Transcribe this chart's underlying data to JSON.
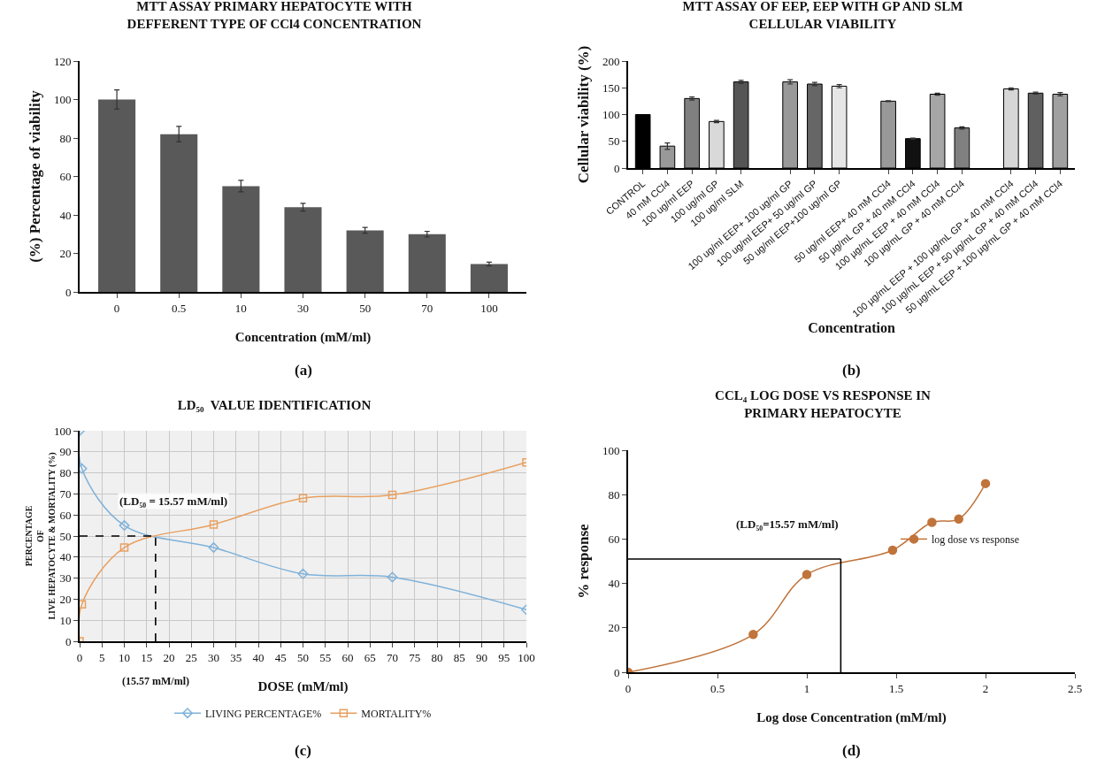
{
  "chart_data": [
    {
      "type": "bar",
      "title": "MTT ASSAY PRIMARY HEPATOCYTE WITH\nDEFFERENT TYPE OF CCl4 CONCENTRATION",
      "xlabel": "Concentration (mM/ml)",
      "ylabel": "(%) Percentage of viability",
      "categories": [
        "0",
        "0.5",
        "10",
        "30",
        "50",
        "70",
        "100"
      ],
      "values": [
        100,
        82,
        55,
        44,
        32,
        30,
        14.5
      ],
      "errors": [
        5,
        4,
        3,
        2,
        1.5,
        1.5,
        1
      ],
      "color": "#595959",
      "ylim": [
        0,
        120
      ],
      "yticks": [
        0,
        20,
        40,
        60,
        80,
        100,
        120
      ],
      "annotations": [
        "(a)"
      ]
    },
    {
      "type": "bar",
      "title": "MTT ASSAY OF EEP, EEP WITH GP AND SLM\nCELLULAR VIABILITY",
      "xlabel": "Concentration",
      "ylabel": "Cellular viability (%)",
      "categories": [
        "CONTROL",
        "40 mM CCl4",
        "100 ug/ml EEP",
        "100 ug/ml GP",
        "100 ug/ml SLM",
        null,
        "100 ug/ml EEP+ 100 ug/ml GP",
        "100 ug/ml EEP+ 50 ug/ml GP",
        "50 ug/ml EEP+100 ug/ml GP",
        null,
        "50 ug/ml EEP+ 40 mM CCl4",
        "50 µg/mL GP + 40 mM CCl4",
        "100 µg/mL EEP + 40 mM CCl4",
        "100 µg/mL GP + 40 mM CCl4",
        null,
        "100 µg/mL EEP + 100 µg/mL GP + 40 mM CCl4",
        "100 µg/mL EEP + 50 µg/mL GP + 40 mM CCl4",
        "50 µg/mL EEP + 100 µg/mL GP + 40 mM CCl4"
      ],
      "values": [
        100,
        41,
        130,
        87,
        161,
        null,
        161,
        157,
        153,
        null,
        125,
        55,
        138,
        75,
        null,
        148,
        140,
        138
      ],
      "errors": [
        null,
        6,
        3,
        2,
        3,
        null,
        4,
        3,
        3,
        null,
        1,
        1,
        2,
        2,
        null,
        2,
        2,
        3
      ],
      "colors": [
        "#000000",
        "#999999",
        "#808080",
        "#d9d9d9",
        "#555555",
        null,
        "#999999",
        "#666666",
        "#e6e6e6",
        null,
        "#999999",
        "#111111",
        "#a6a6a6",
        "#808080",
        null,
        "#d6d6d6",
        "#606060",
        "#a0a0a0"
      ],
      "ylim": [
        0,
        200
      ],
      "yticks": [
        0,
        50,
        100,
        150,
        200
      ],
      "annotations": [
        "(b)"
      ]
    },
    {
      "type": "line",
      "title": "LD₅₀  VALUE IDENTIFICATION",
      "xlabel": "DOSE (mM/ml)",
      "ylabel": "PERCENTAGE\nOF\nLIVE HEPATOCYTE & MORTALITY (%)",
      "x": [
        0,
        0.5,
        10,
        30,
        50,
        70,
        100
      ],
      "series": [
        {
          "name": "LIVING PERCENTAGE%",
          "color": "#7fb2d9",
          "marker": "diamond",
          "values": [
            100,
            82,
            55,
            44.5,
            32,
            30.5,
            15
          ]
        },
        {
          "name": "MORTALITY%",
          "color": "#e8a060",
          "marker": "square",
          "values": [
            0,
            17.5,
            44.5,
            55.5,
            68,
            69.5,
            85
          ]
        }
      ],
      "xlim": [
        0,
        100
      ],
      "xticks": [
        0,
        5,
        10,
        15,
        20,
        25,
        30,
        35,
        40,
        45,
        50,
        55,
        60,
        65,
        70,
        75,
        80,
        85,
        90,
        95,
        100
      ],
      "ylim": [
        0,
        100
      ],
      "yticks": [
        0,
        10,
        20,
        30,
        40,
        50,
        60,
        70,
        80,
        90,
        100
      ],
      "grid": true,
      "legend": "bottom",
      "ref_lines": [
        {
          "axis": "y",
          "value": 50,
          "color": "#000000",
          "line_style": "dashed"
        },
        {
          "axis": "x",
          "value": 17,
          "color": "#000000",
          "line_style": "dashed"
        }
      ],
      "annotations": [
        "(LD₅₀ = 15.57 mM/ml)",
        "(15.57 mM/ml)",
        "(c)"
      ]
    },
    {
      "type": "line",
      "title": "CCL₄ LOG DOSE VS RESPONSE IN\nPRIMARY HEPATOCYTE",
      "xlabel": "Log dose Concentration (mM/ml)",
      "ylabel": "% response",
      "x": [
        0,
        0.7,
        1,
        1.48,
        1.7,
        1.85,
        2
      ],
      "series": [
        {
          "name": "log dose vs response",
          "color": "#c0733a",
          "marker": "circle",
          "values": [
            0,
            17,
            44,
            55,
            67.5,
            69,
            85
          ]
        }
      ],
      "xlim": [
        0,
        2.5
      ],
      "xticks": [
        0,
        0.5,
        1,
        1.5,
        2,
        2.5
      ],
      "ylim": [
        0,
        100
      ],
      "yticks": [
        0,
        20,
        40,
        60,
        80,
        100
      ],
      "legend": "right",
      "ref_lines": [
        {
          "axis": "y",
          "value": 51,
          "color": "#000000",
          "line_style": "solid"
        },
        {
          "axis": "x",
          "value": 1.19,
          "color": "#000000",
          "line_style": "solid"
        }
      ],
      "annotations": [
        "(LD₅₀=15.57 mM/ml)",
        "(d)"
      ]
    }
  ]
}
